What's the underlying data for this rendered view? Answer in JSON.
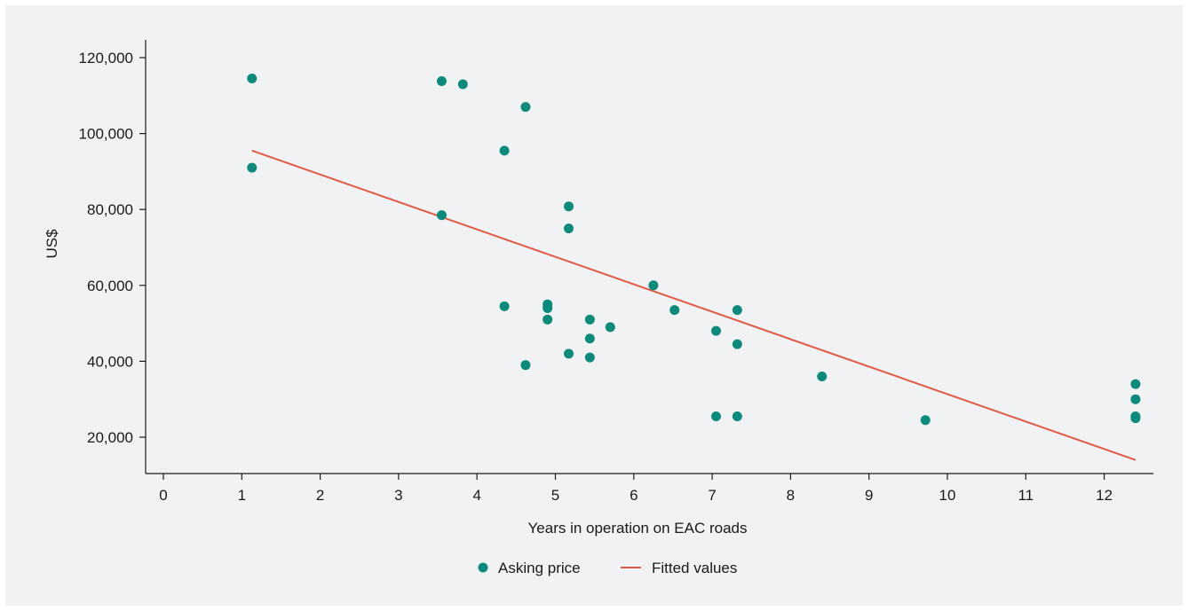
{
  "chart_data": {
    "type": "scatter",
    "xlabel": "Years in operation on EAC roads",
    "ylabel": "US$",
    "xlim": [
      0,
      12.6
    ],
    "ylim": [
      11000,
      120000
    ],
    "x_ticks": [
      0,
      1,
      2,
      3,
      4,
      5,
      6,
      7,
      8,
      9,
      10,
      11,
      12
    ],
    "y_ticks": [
      20000,
      40000,
      60000,
      80000,
      100000,
      120000
    ],
    "x_tick_labels": [
      "0",
      "1",
      "2",
      "3",
      "4",
      "5",
      "6",
      "7",
      "8",
      "9",
      "10",
      "11",
      "12"
    ],
    "y_tick_labels": [
      "20,000",
      "40,000",
      "60,000",
      "80,000",
      "100,000",
      "120,000"
    ],
    "grid": false,
    "legend_position": "bottom-center",
    "series": [
      {
        "name": "Asking price",
        "kind": "scatter",
        "color": "#0e8a7d",
        "points": [
          {
            "x": 1.13,
            "y": 114500
          },
          {
            "x": 1.13,
            "y": 91000
          },
          {
            "x": 3.55,
            "y": 113800
          },
          {
            "x": 3.55,
            "y": 78500
          },
          {
            "x": 3.82,
            "y": 113000
          },
          {
            "x": 4.35,
            "y": 95500
          },
          {
            "x": 4.35,
            "y": 54500
          },
          {
            "x": 4.62,
            "y": 107000
          },
          {
            "x": 4.62,
            "y": 39000
          },
          {
            "x": 4.9,
            "y": 55000
          },
          {
            "x": 4.9,
            "y": 54000
          },
          {
            "x": 4.9,
            "y": 51000
          },
          {
            "x": 5.17,
            "y": 80800
          },
          {
            "x": 5.17,
            "y": 75000
          },
          {
            "x": 5.17,
            "y": 42000
          },
          {
            "x": 5.44,
            "y": 51000
          },
          {
            "x": 5.44,
            "y": 46000
          },
          {
            "x": 5.44,
            "y": 41000
          },
          {
            "x": 5.7,
            "y": 49000
          },
          {
            "x": 6.25,
            "y": 60000
          },
          {
            "x": 6.52,
            "y": 53500
          },
          {
            "x": 7.05,
            "y": 48000
          },
          {
            "x": 7.05,
            "y": 25500
          },
          {
            "x": 7.32,
            "y": 53500
          },
          {
            "x": 7.32,
            "y": 44500
          },
          {
            "x": 7.32,
            "y": 25500
          },
          {
            "x": 8.4,
            "y": 36000
          },
          {
            "x": 9.72,
            "y": 24500
          },
          {
            "x": 12.4,
            "y": 34000
          },
          {
            "x": 12.4,
            "y": 30000
          },
          {
            "x": 12.4,
            "y": 25500
          },
          {
            "x": 12.4,
            "y": 25000
          }
        ]
      },
      {
        "name": "Fitted values",
        "kind": "line",
        "color": "#e05a47",
        "points": [
          {
            "x": 1.13,
            "y": 95500
          },
          {
            "x": 12.4,
            "y": 14000
          }
        ]
      }
    ]
  }
}
